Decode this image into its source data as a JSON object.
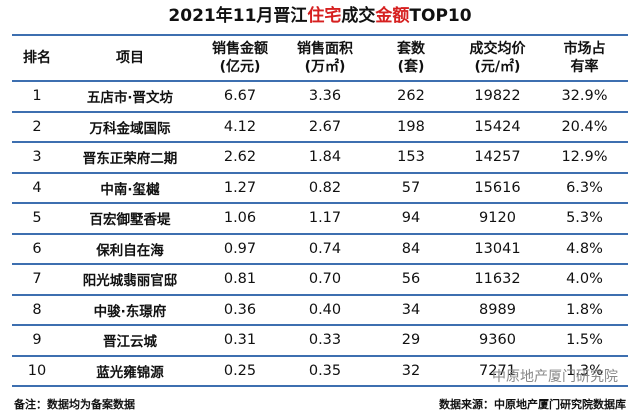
{
  "title_parts": [
    "2021年11月晋江",
    "住宅",
    "成交",
    "金额",
    "TOP10"
  ],
  "title_highlight": [
    1,
    3
  ],
  "table": {
    "headers": [
      [
        "排名"
      ],
      [
        "项目"
      ],
      [
        "销售金额",
        "(亿元)"
      ],
      [
        "销售面积",
        "(万㎡)"
      ],
      [
        "套数",
        "(套)"
      ],
      [
        "成交均价",
        "(元/㎡)"
      ],
      [
        "市场占",
        "有率"
      ]
    ],
    "rows": [
      [
        "1",
        "五店市·晋文坊",
        "6.67",
        "3.36",
        "262",
        "19822",
        "32.9%"
      ],
      [
        "2",
        "万科金域国际",
        "4.12",
        "2.67",
        "198",
        "15424",
        "20.4%"
      ],
      [
        "3",
        "晋东正荣府二期",
        "2.62",
        "1.84",
        "153",
        "14257",
        "12.9%"
      ],
      [
        "4",
        "中南·玺樾",
        "1.27",
        "0.82",
        "57",
        "15616",
        "6.3%"
      ],
      [
        "5",
        "百宏御墅香堤",
        "1.06",
        "1.17",
        "94",
        "9120",
        "5.3%"
      ],
      [
        "6",
        "保利自在海",
        "0.97",
        "0.74",
        "84",
        "13041",
        "4.8%"
      ],
      [
        "7",
        "阳光城翡丽官邸",
        "0.81",
        "0.70",
        "56",
        "11632",
        "4.0%"
      ],
      [
        "8",
        "中骏·东璟府",
        "0.36",
        "0.40",
        "34",
        "8989",
        "1.8%"
      ],
      [
        "9",
        "晋江云城",
        "0.31",
        "0.33",
        "29",
        "9360",
        "1.5%"
      ],
      [
        "10",
        "蓝光雍锦源",
        "0.25",
        "0.35",
        "32",
        "7271",
        "1.3%"
      ]
    ]
  },
  "watermark": "中原地产厦门研究院",
  "footer": {
    "note": "备注：数据均为备案数据",
    "source": "数据来源：中原地产厦门研究院数据库"
  }
}
